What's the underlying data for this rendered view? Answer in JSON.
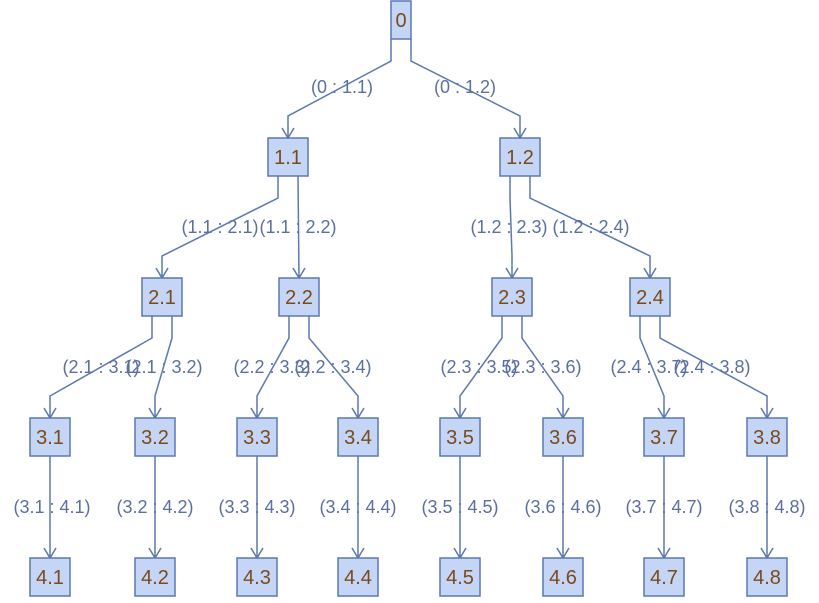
{
  "nodes": [
    {
      "id": "0",
      "label": "0"
    },
    {
      "id": "1.1",
      "label": "1.1"
    },
    {
      "id": "1.2",
      "label": "1.2"
    },
    {
      "id": "2.1",
      "label": "2.1"
    },
    {
      "id": "2.2",
      "label": "2.2"
    },
    {
      "id": "2.3",
      "label": "2.3"
    },
    {
      "id": "2.4",
      "label": "2.4"
    },
    {
      "id": "3.1",
      "label": "3.1"
    },
    {
      "id": "3.2",
      "label": "3.2"
    },
    {
      "id": "3.3",
      "label": "3.3"
    },
    {
      "id": "3.4",
      "label": "3.4"
    },
    {
      "id": "3.5",
      "label": "3.5"
    },
    {
      "id": "3.6",
      "label": "3.6"
    },
    {
      "id": "3.7",
      "label": "3.7"
    },
    {
      "id": "3.8",
      "label": "3.8"
    },
    {
      "id": "4.1",
      "label": "4.1"
    },
    {
      "id": "4.2",
      "label": "4.2"
    },
    {
      "id": "4.3",
      "label": "4.3"
    },
    {
      "id": "4.4",
      "label": "4.4"
    },
    {
      "id": "4.5",
      "label": "4.5"
    },
    {
      "id": "4.6",
      "label": "4.6"
    },
    {
      "id": "4.7",
      "label": "4.7"
    },
    {
      "id": "4.8",
      "label": "4.8"
    }
  ],
  "edges": [
    {
      "from": "0",
      "to": "1.1",
      "label": "(0 : 1.1)"
    },
    {
      "from": "0",
      "to": "1.2",
      "label": "(0 : 1.2)"
    },
    {
      "from": "1.1",
      "to": "2.1",
      "label": "(1.1 : 2.1)"
    },
    {
      "from": "1.1",
      "to": "2.2",
      "label": "(1.1 : 2.2)"
    },
    {
      "from": "1.2",
      "to": "2.3",
      "label": "(1.2 : 2.3)"
    },
    {
      "from": "1.2",
      "to": "2.4",
      "label": "(1.2 : 2.4)"
    },
    {
      "from": "2.1",
      "to": "3.1",
      "label": "(2.1 : 3.1)"
    },
    {
      "from": "2.1",
      "to": "3.2",
      "label": "(2.1 : 3.2)"
    },
    {
      "from": "2.2",
      "to": "3.3",
      "label": "(2.2 : 3.3)"
    },
    {
      "from": "2.2",
      "to": "3.4",
      "label": "(2.2 : 3.4)"
    },
    {
      "from": "2.3",
      "to": "3.5",
      "label": "(2.3 : 3.5)"
    },
    {
      "from": "2.3",
      "to": "3.6",
      "label": "(2.3 : 3.6)"
    },
    {
      "from": "2.4",
      "to": "3.7",
      "label": "(2.4 : 3.7)"
    },
    {
      "from": "2.4",
      "to": "3.8",
      "label": "(2.4 : 3.8)"
    },
    {
      "from": "3.1",
      "to": "4.1",
      "label": "(3.1 : 4.1)"
    },
    {
      "from": "3.2",
      "to": "4.2",
      "label": "(3.2 : 4.2)"
    },
    {
      "from": "3.3",
      "to": "4.3",
      "label": "(3.3 : 4.3)"
    },
    {
      "from": "3.4",
      "to": "4.4",
      "label": "(3.4 : 4.4)"
    },
    {
      "from": "3.5",
      "to": "4.5",
      "label": "(3.5 : 4.5)"
    },
    {
      "from": "3.6",
      "to": "4.6",
      "label": "(3.6 : 4.6)"
    },
    {
      "from": "3.7",
      "to": "4.7",
      "label": "(3.7 : 4.7)"
    },
    {
      "from": "3.8",
      "to": "4.8",
      "label": "(3.8 : 4.8)"
    }
  ],
  "colors": {
    "node_fill": "#c4d5f5",
    "node_stroke": "#5b78b0",
    "node_text": "#7a4a1a",
    "edge_text": "#5b6fa0"
  }
}
